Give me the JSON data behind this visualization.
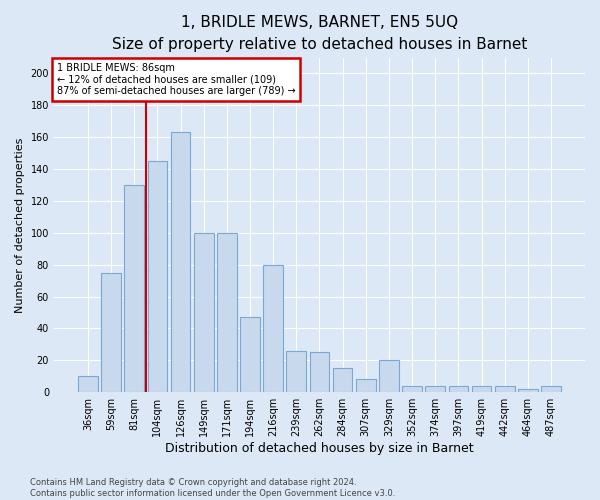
{
  "title": "1, BRIDLE MEWS, BARNET, EN5 5UQ",
  "subtitle": "Size of property relative to detached houses in Barnet",
  "xlabel": "Distribution of detached houses by size in Barnet",
  "ylabel": "Number of detached properties",
  "categories": [
    "36sqm",
    "59sqm",
    "81sqm",
    "104sqm",
    "126sqm",
    "149sqm",
    "171sqm",
    "194sqm",
    "216sqm",
    "239sqm",
    "262sqm",
    "284sqm",
    "307sqm",
    "329sqm",
    "352sqm",
    "374sqm",
    "397sqm",
    "419sqm",
    "442sqm",
    "464sqm",
    "487sqm"
  ],
  "values": [
    10,
    75,
    130,
    145,
    163,
    100,
    100,
    47,
    80,
    26,
    25,
    15,
    8,
    20,
    4,
    4,
    4,
    4,
    4,
    2,
    4
  ],
  "bar_color": "#c8d9ee",
  "bar_edge_color": "#7aa8d2",
  "vline_x_index": 2.5,
  "vline_color": "#cc0000",
  "annotation_line1": "1 BRIDLE MEWS: 86sqm",
  "annotation_line2": "← 12% of detached houses are smaller (109)",
  "annotation_line3": "87% of semi-detached houses are larger (789) →",
  "annotation_box_color": "#ffffff",
  "annotation_box_edge_color": "#cc0000",
  "ylim": [
    0,
    210
  ],
  "yticks": [
    0,
    20,
    40,
    60,
    80,
    100,
    120,
    140,
    160,
    180,
    200
  ],
  "title_fontsize": 11,
  "subtitle_fontsize": 9,
  "xlabel_fontsize": 9,
  "ylabel_fontsize": 8,
  "tick_fontsize": 7,
  "footer_text": "Contains HM Land Registry data © Crown copyright and database right 2024.\nContains public sector information licensed under the Open Government Licence v3.0.",
  "background_color": "#dce8f5",
  "plot_bg_color": "#dce8f5",
  "grid_color": "#ffffff"
}
